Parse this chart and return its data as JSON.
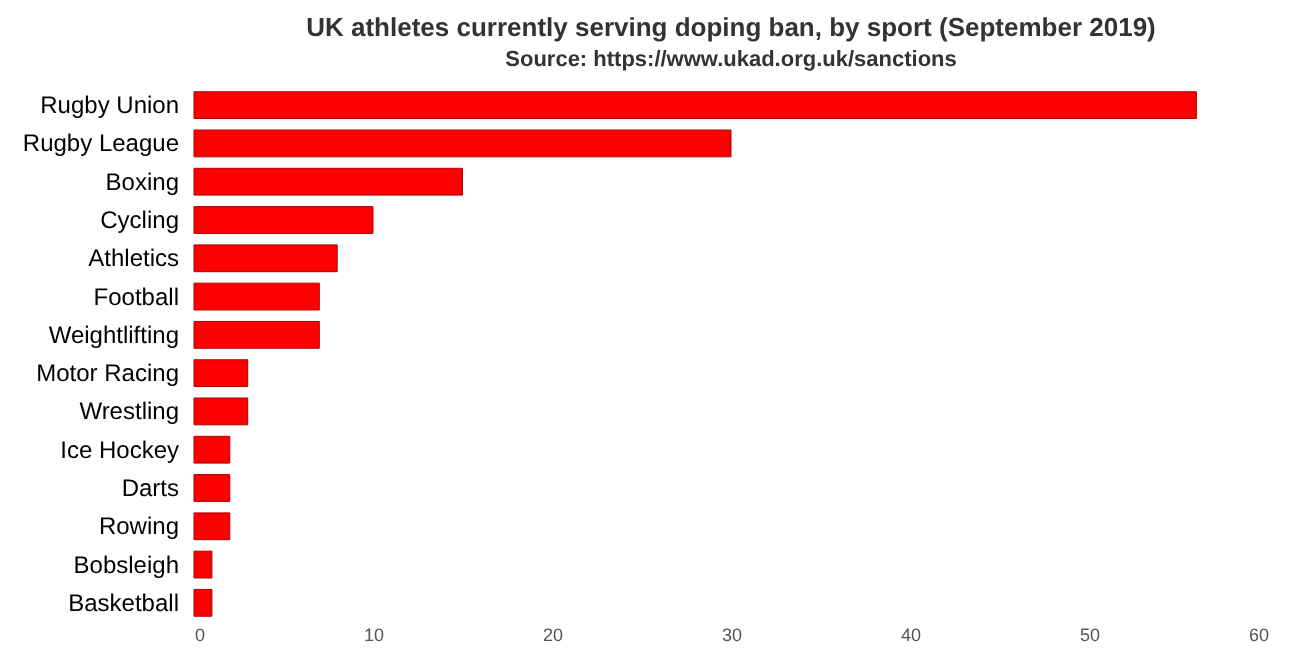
{
  "chart_data": {
    "type": "bar",
    "orientation": "horizontal",
    "title": "UK athletes currently serving doping ban, by sport (September 2019)",
    "subtitle": "Source: https://www.ukad.org.uk/sanctions",
    "categories": [
      "Rugby Union",
      "Rugby League",
      "Boxing",
      "Cycling",
      "Athletics",
      "Football",
      "Weightlifting",
      "Motor Racing",
      "Wrestling",
      "Ice Hockey",
      "Darts",
      "Rowing",
      "Bobsleigh",
      "Basketball"
    ],
    "values": [
      56,
      30,
      15,
      10,
      8,
      7,
      7,
      3,
      3,
      2,
      2,
      2,
      1,
      1
    ],
    "color": "#fe0000",
    "xlim": [
      0,
      60
    ],
    "xticks": [
      0,
      10,
      20,
      30,
      40,
      50,
      60
    ],
    "grid": false
  }
}
